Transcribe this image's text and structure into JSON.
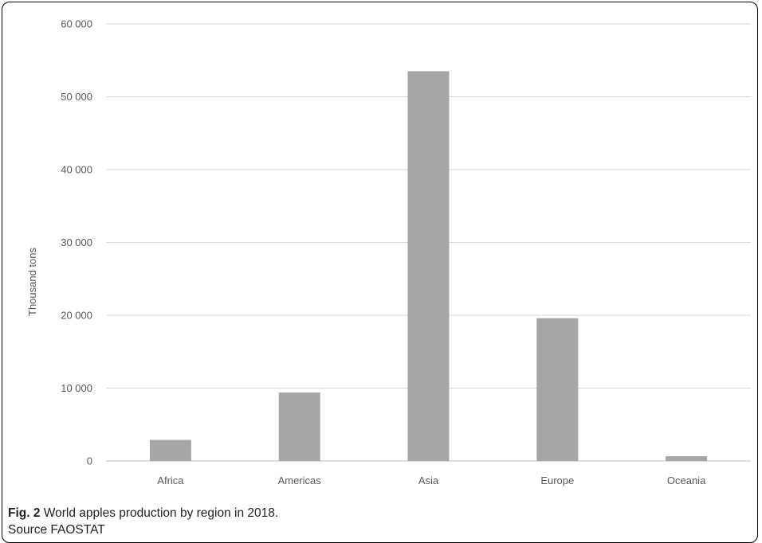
{
  "chart_data": {
    "type": "bar",
    "categories": [
      "Africa",
      "Americas",
      "Asia",
      "Europe",
      "Oceania"
    ],
    "values": [
      2900,
      9400,
      53500,
      19600,
      650
    ],
    "ylabel": "Thousand tons",
    "ylim": [
      0,
      60000
    ],
    "yticks": [
      0,
      10000,
      20000,
      30000,
      40000,
      50000,
      60000
    ],
    "ytick_labels": [
      "0",
      "10 000",
      "20 000",
      "30 000",
      "40 000",
      "50 000",
      "60 000"
    ],
    "grid": true,
    "bar_color": "#a6a6a6",
    "grid_color": "#d9d9d9"
  },
  "caption": {
    "label": "Fig. 2",
    "text": " World apples production by region in 2018.",
    "source": "Source FAOSTAT"
  }
}
